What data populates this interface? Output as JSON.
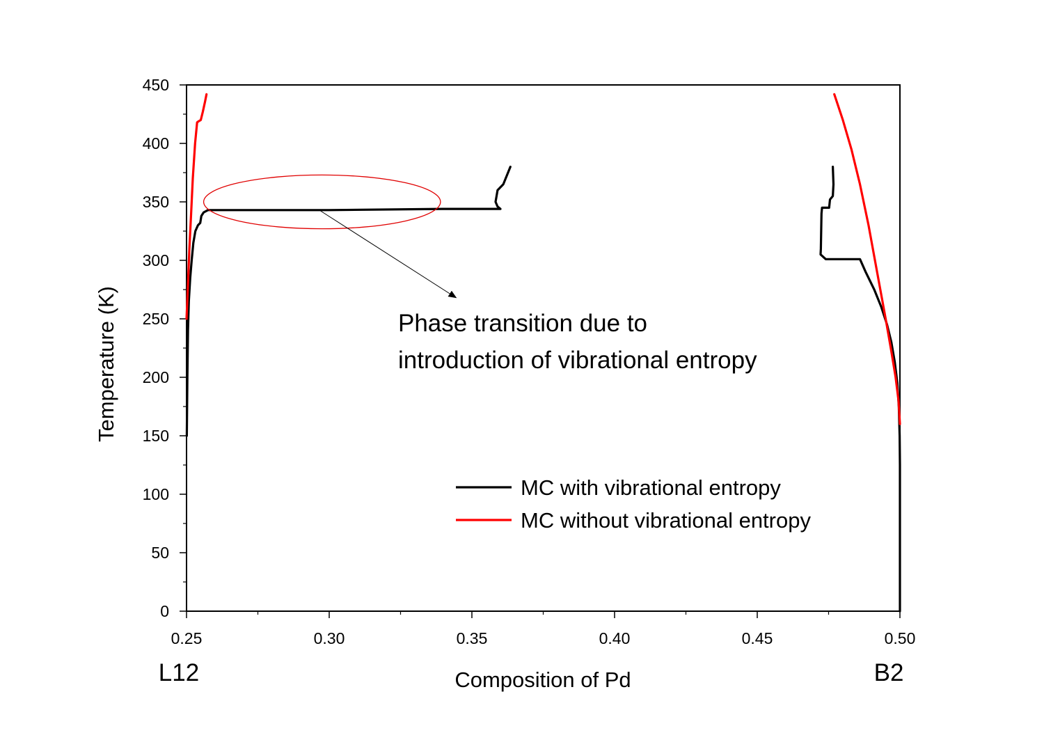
{
  "chart_data": {
    "type": "line",
    "title": "",
    "xlabel": "Composition of Pd",
    "ylabel": "Temperature (K)",
    "xlim": [
      0.25,
      0.5
    ],
    "ylim": [
      0,
      450
    ],
    "xticks": [
      0.25,
      0.3,
      0.35,
      0.4,
      0.45,
      0.5
    ],
    "xtick_labels": [
      "0.25",
      "0.30",
      "0.35",
      "0.40",
      "0.45",
      "0.50"
    ],
    "yticks": [
      0,
      50,
      100,
      150,
      200,
      250,
      300,
      350,
      400,
      450
    ],
    "ytick_labels": [
      "0",
      "50",
      "100",
      "150",
      "200",
      "250",
      "300",
      "350",
      "400",
      "450"
    ],
    "grid": false,
    "legend_position": "bottom-right",
    "phase_labels": {
      "left": "L12",
      "right": "B2"
    },
    "annotation": {
      "lines": [
        "Phase transition due to",
        "introduction of vibrational entropy"
      ],
      "ellipse_center": [
        0.2975,
        350
      ],
      "ellipse_semi_axes": [
        0.0415,
        23
      ],
      "arrow_from": [
        0.2965,
        343
      ],
      "arrow_to": [
        0.3445,
        268
      ],
      "color": "#e00000"
    },
    "series": [
      {
        "name": "MC with vibrational entropy",
        "color": "#000000",
        "segments": [
          [
            [
              0.2501,
              150
            ],
            [
              0.2503,
              200
            ],
            [
              0.2505,
              240
            ],
            [
              0.2508,
              265
            ],
            [
              0.2513,
              285
            ],
            [
              0.2518,
              300
            ],
            [
              0.2524,
              315
            ],
            [
              0.2531,
              325
            ],
            [
              0.254,
              330
            ],
            [
              0.2548,
              332
            ],
            [
              0.2552,
              338
            ],
            [
              0.256,
              341
            ],
            [
              0.2575,
              343
            ],
            [
              0.26,
              343
            ],
            [
              0.3,
              343
            ],
            [
              0.34,
              344
            ],
            [
              0.36,
              344
            ],
            [
              0.359,
              346
            ],
            [
              0.3583,
              350
            ],
            [
              0.359,
              360
            ],
            [
              0.361,
              365
            ],
            [
              0.3635,
              380
            ]
          ],
          [
            [
              0.4765,
              380
            ],
            [
              0.4767,
              365
            ],
            [
              0.4765,
              355
            ],
            [
              0.4755,
              352
            ],
            [
              0.4752,
              345
            ],
            [
              0.4727,
              345
            ],
            [
              0.4725,
              340
            ],
            [
              0.4723,
              310
            ],
            [
              0.4722,
              305
            ],
            [
              0.474,
              301
            ],
            [
              0.486,
              301
            ],
            [
              0.488,
              290
            ],
            [
              0.491,
              275
            ],
            [
              0.4935,
              260
            ],
            [
              0.4955,
              245
            ],
            [
              0.497,
              230
            ],
            [
              0.4982,
              213
            ],
            [
              0.4991,
              195
            ],
            [
              0.4996,
              175
            ],
            [
              0.4999,
              150
            ],
            [
              0.5,
              125
            ],
            [
              0.5,
              0
            ]
          ]
        ]
      },
      {
        "name": "MC without vibrational entropy",
        "color": "#ff0000",
        "segments": [
          [
            [
              0.25,
              250
            ],
            [
              0.2505,
              280
            ],
            [
              0.251,
              310
            ],
            [
              0.2516,
              340
            ],
            [
              0.2522,
              370
            ],
            [
              0.253,
              400
            ],
            [
              0.2537,
              418
            ],
            [
              0.2543,
              419
            ],
            [
              0.255,
              420
            ],
            [
              0.2557,
              427
            ],
            [
              0.2565,
              436
            ],
            [
              0.257,
              442
            ]
          ],
          [
            [
              0.477,
              442
            ],
            [
              0.48,
              420
            ],
            [
              0.483,
              395
            ],
            [
              0.486,
              365
            ],
            [
              0.489,
              330
            ],
            [
              0.492,
              290
            ],
            [
              0.495,
              250
            ],
            [
              0.497,
              222
            ],
            [
              0.4985,
              200
            ],
            [
              0.4995,
              180
            ],
            [
              0.5,
              160
            ]
          ]
        ]
      }
    ]
  }
}
